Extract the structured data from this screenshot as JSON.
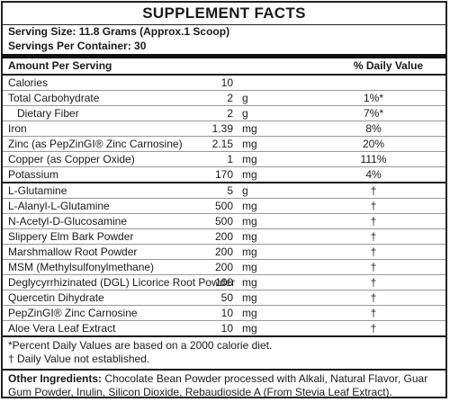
{
  "title": "SUPPLEMENT FACTS",
  "serving_size": "Serving Size: 11.8 Grams (Approx.1 Scoop)",
  "servings_per_container": "Servings Per Container: 30",
  "header": {
    "amount": "Amount Per Serving",
    "dv": "% Daily Value"
  },
  "nutrients": [
    {
      "name": "Calories",
      "amount": "10",
      "unit": "",
      "dv": ""
    },
    {
      "name": "Total Carbohydrate",
      "amount": "2",
      "unit": "g",
      "dv": "1%*"
    },
    {
      "name": "Dietary Fiber",
      "amount": "2",
      "unit": "g",
      "dv": "7%*"
    },
    {
      "name": "Iron",
      "amount": "1.39",
      "unit": "mg",
      "dv": "8%"
    },
    {
      "name": "Zinc (as PepZinGI® Zinc Carnosine)",
      "amount": "2.15",
      "unit": "mg",
      "dv": "20%"
    },
    {
      "name": "Copper (as Copper Oxide)",
      "amount": "1",
      "unit": "mg",
      "dv": "111%"
    },
    {
      "name": "Potassium",
      "amount": "170",
      "unit": "mg",
      "dv": "4%"
    }
  ],
  "ingredients": [
    {
      "name": "L-Glutamine",
      "amount": "5",
      "unit": "g",
      "dv": "†"
    },
    {
      "name": "L-Alanyl-L-Glutamine",
      "amount": "500",
      "unit": "mg",
      "dv": "†"
    },
    {
      "name": "N-Acetyl-D-Glucosamine",
      "amount": "500",
      "unit": "mg",
      "dv": "†"
    },
    {
      "name": "Slippery Elm Bark Powder",
      "amount": "200",
      "unit": "mg",
      "dv": "†"
    },
    {
      "name": "Marshmallow Root Powder",
      "amount": "200",
      "unit": "mg",
      "dv": "†"
    },
    {
      "name": "MSM (Methylsulfonylmethane)",
      "amount": "200",
      "unit": "mg",
      "dv": "†"
    },
    {
      "name": "Deglycyrrhizinated (DGL) Licorice Root Powder",
      "amount": "100",
      "unit": "mg",
      "dv": "†"
    },
    {
      "name": "Quercetin Dihydrate",
      "amount": "50",
      "unit": "mg",
      "dv": "†"
    },
    {
      "name": "PepZinGI® Zinc Carnosine",
      "amount": "10",
      "unit": "mg",
      "dv": "†"
    },
    {
      "name": "Aloe Vera Leaf Extract",
      "amount": "10",
      "unit": "mg",
      "dv": "†"
    }
  ],
  "footnotes": [
    "*Percent Daily Values are based on a 2000 calorie diet.",
    "† Daily Value not established."
  ],
  "other_ingredients_label": "Other Ingredients:",
  "other_ingredients": " Chocolate Bean Powder processed with Alkali, Natural Flavor, Guar Gum Powder, Inulin, Silicon Dioxide, Rebaudioside A (From Stevia Leaf Extract)."
}
